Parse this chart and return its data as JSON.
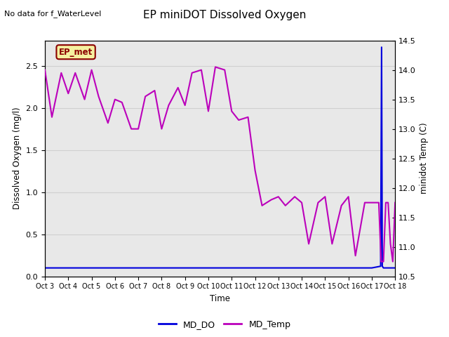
{
  "title": "EP miniDOT Dissolved Oxygen",
  "top_left_text": "No data for f_WaterLevel",
  "box_label": "EP_met",
  "xlabel": "Time",
  "ylabel_left": "Dissolved Oxygen (mg/l)",
  "ylabel_right": "minidot Temp (C)",
  "ylim_left": [
    0.0,
    2.8
  ],
  "ylim_right": [
    10.5,
    14.5
  ],
  "xlim": [
    0,
    15
  ],
  "xtick_labels": [
    "Oct 3",
    "Oct 4",
    "Oct 5",
    "Oct 6",
    "Oct 7",
    "Oct 8",
    "Oct 9",
    "Oct 10",
    "Oct 11",
    "Oct 12",
    "Oct 13",
    "Oct 14",
    "Oct 15",
    "Oct 16",
    "Oct 17",
    "Oct 18"
  ],
  "xtick_positions": [
    0,
    1,
    2,
    3,
    4,
    5,
    6,
    7,
    8,
    9,
    10,
    11,
    12,
    13,
    14,
    15
  ],
  "grid_color": "#d0d0d0",
  "background_color": "#e8e8e8",
  "md_do_color": "#0000dd",
  "md_temp_color": "#bb00bb",
  "legend_labels": [
    "MD_DO",
    "MD_Temp"
  ],
  "md_do_x": [
    0,
    0.5,
    1,
    1.5,
    2,
    2.5,
    3,
    3.5,
    4,
    4.5,
    5,
    5.5,
    6,
    6.5,
    7,
    7.5,
    8,
    8.5,
    9,
    9.5,
    10,
    10.5,
    11,
    11.5,
    12,
    12.5,
    13,
    13.5,
    14,
    14.38,
    14.42,
    14.45,
    14.5,
    14.55,
    14.6,
    14.65,
    14.7,
    14.75,
    14.8,
    14.85,
    14.9,
    14.95,
    15
  ],
  "md_do_y": [
    0.1,
    0.1,
    0.1,
    0.1,
    0.1,
    0.1,
    0.1,
    0.1,
    0.1,
    0.1,
    0.1,
    0.1,
    0.1,
    0.1,
    0.1,
    0.1,
    0.1,
    0.1,
    0.1,
    0.1,
    0.1,
    0.1,
    0.1,
    0.1,
    0.1,
    0.1,
    0.1,
    0.1,
    0.1,
    0.12,
    2.72,
    0.12,
    0.1,
    0.1,
    0.1,
    0.1,
    0.1,
    0.1,
    0.1,
    0.1,
    0.1,
    0.1,
    0.1
  ],
  "md_temp_x": [
    0,
    0.3,
    0.7,
    1.0,
    1.3,
    1.7,
    2.0,
    2.3,
    2.7,
    3.0,
    3.3,
    3.7,
    4.0,
    4.3,
    4.7,
    5.0,
    5.3,
    5.7,
    6.0,
    6.3,
    6.7,
    7.0,
    7.3,
    7.7,
    8.0,
    8.3,
    8.7,
    9.0,
    9.3,
    9.7,
    10.0,
    10.3,
    10.7,
    11.0,
    11.3,
    11.7,
    12.0,
    12.3,
    12.7,
    13.0,
    13.3,
    13.7,
    14.0,
    14.3,
    14.4,
    14.5,
    14.6,
    14.7,
    14.8,
    14.9,
    15.0
  ],
  "md_temp_y": [
    14.0,
    13.2,
    13.95,
    13.6,
    13.95,
    13.5,
    14.0,
    13.55,
    13.1,
    13.5,
    13.45,
    13.0,
    13.0,
    13.55,
    13.65,
    13.0,
    13.4,
    13.7,
    13.4,
    13.95,
    14.0,
    13.3,
    14.05,
    14.0,
    13.3,
    13.15,
    13.2,
    12.3,
    11.7,
    11.8,
    11.85,
    11.7,
    11.85,
    11.75,
    11.05,
    11.75,
    11.85,
    11.05,
    11.7,
    11.85,
    10.85,
    11.75,
    11.75,
    11.75,
    10.75,
    10.75,
    11.75,
    11.75,
    11.05,
    10.75,
    11.75
  ]
}
